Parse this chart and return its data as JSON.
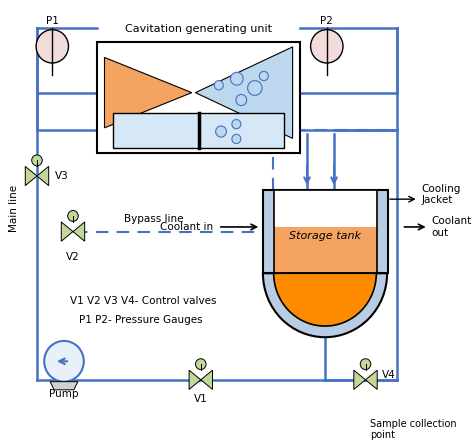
{
  "title": "Cavitation generating unit",
  "line_color": "#4472C4",
  "nozzle_orange": "#F4A460",
  "nozzle_blue": "#BDD7EE",
  "orifice_bg": "#D6E8F5",
  "tank_jacket_color": "#B8CCE4",
  "tank_liquid_orange": "#F4A460",
  "tank_liquid_bottom": "#FF8C00",
  "valve_color": "#C4D79B",
  "pressure_gauge_color": "#F2DCDB",
  "bubble_color": "#4472C4",
  "main_line_label": "Main line",
  "bypass_label": "Bypass line",
  "coolant_in_label": "Coolant in",
  "cooling_jacket_label": "Cooling\nJacket",
  "coolant_out_label": "Coolant\nout",
  "storage_tank_label": "Storage tank",
  "pump_label": "Pump",
  "sample_label": "Sample collection\npoint",
  "legend_valves": "V1 V2 V3 V4- Control valves",
  "legend_gauges": "P1 P2- Pressure Gauges"
}
